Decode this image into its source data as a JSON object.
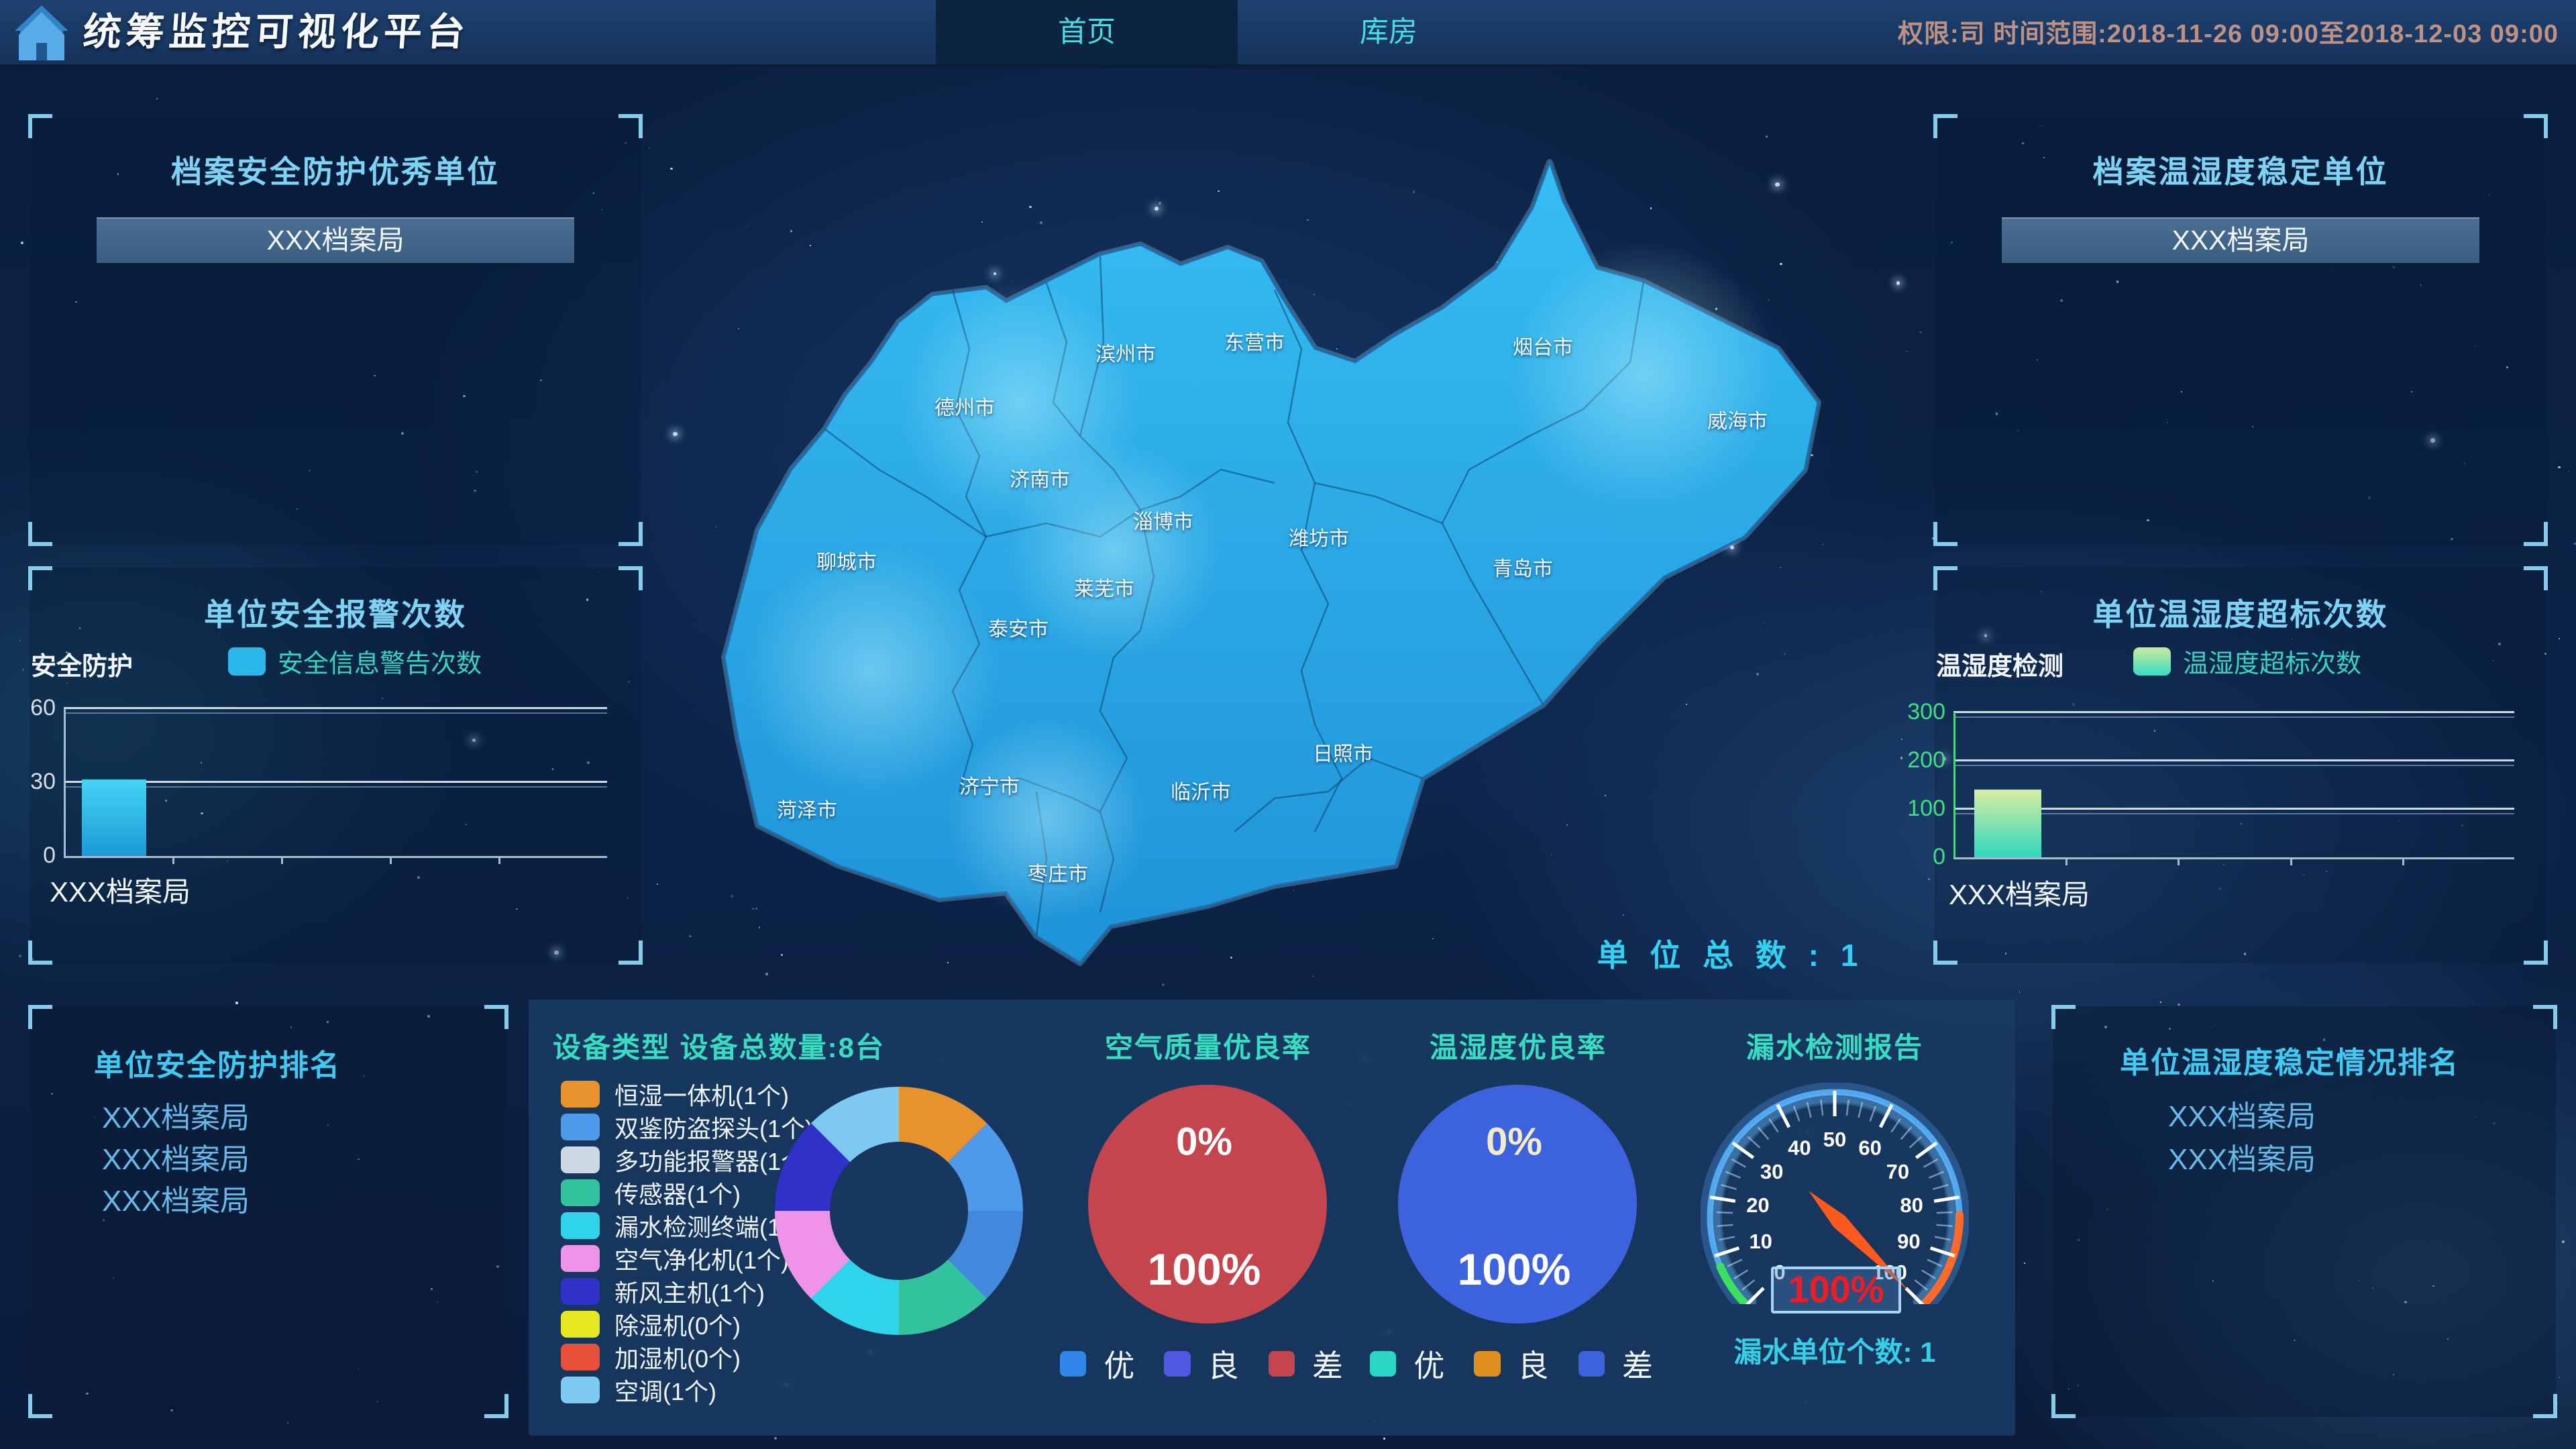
{
  "header": {
    "title": "统筹监控可视化平台",
    "tabs": [
      {
        "label": "首页",
        "active": true
      },
      {
        "label": "库房",
        "active": false
      }
    ],
    "info": "权限:司 时间范围:2018-11-26 09:00至2018-12-03 09:00"
  },
  "panels": {
    "top_left": {
      "title": "档案安全防护优秀单位",
      "items": [
        "XXX档案局"
      ]
    },
    "top_right": {
      "title": "档案温湿度稳定单位",
      "items": [
        "XXX档案局"
      ]
    },
    "rank_left": {
      "title": "单位安全防护排名",
      "items": [
        "XXX档案局",
        "XXX档案局",
        "XXX档案局"
      ]
    },
    "rank_right": {
      "title": "单位温湿度稳定情况排名",
      "items": [
        "XXX档案局",
        "XXX档案局"
      ]
    }
  },
  "map": {
    "total_units_label": "单 位 总 数 : 1",
    "cities": [
      "滨州市",
      "东营市",
      "烟台市",
      "威海市",
      "德州市",
      "济南市",
      "淄博市",
      "潍坊市",
      "聊城市",
      "莱芜市",
      "泰安市",
      "青岛市",
      "菏泽市",
      "济宁市",
      "临沂市",
      "日照市",
      "枣庄市"
    ]
  },
  "chart_data": {
    "alarm_bar": {
      "type": "bar",
      "panel_title": "单位安全报警次数",
      "side_label": "安全防护",
      "legend": "安全信息警告次数",
      "legend_color": "#2bb7ea",
      "categories": [
        "XXX档案局"
      ],
      "values": [
        31
      ],
      "ylim": [
        0,
        60
      ],
      "yticks": [
        60,
        30,
        0
      ],
      "tick_color": "#d6dde6",
      "bar_colors": [
        "#45d4f5",
        "#1b99d6"
      ]
    },
    "humidity_bar": {
      "type": "bar",
      "panel_title": "单位温湿度超标次数",
      "side_label": "温湿度检测",
      "legend": "温湿度超标次数",
      "legend_colors": [
        "#cde89a",
        "#35dec8"
      ],
      "categories": [
        "XXX档案局"
      ],
      "values": [
        140
      ],
      "ylim": [
        0,
        300
      ],
      "yticks": [
        300,
        200,
        100,
        0
      ],
      "tick_color": "#3ce281",
      "bar_colors": [
        "#d8eda0",
        "#2fd8c0"
      ]
    },
    "device_donut": {
      "type": "donut",
      "title": "设备类型 设备总数量:8台",
      "items": [
        {
          "label": "恒湿一体机(1个)",
          "count": 1,
          "color": "#e8922d"
        },
        {
          "label": "双鉴防盗探头(1个)",
          "count": 1,
          "color": "#4f99ea"
        },
        {
          "label": "多功能报警器(1个)",
          "count": 1,
          "color": "#ccd8e4",
          "chart_color": "#4289dd"
        },
        {
          "label": "传感器(1个)",
          "count": 1,
          "color": "#32c29e"
        },
        {
          "label": "漏水检测终端(1个)",
          "count": 1,
          "color": "#2fd4ea"
        },
        {
          "label": "空气净化机(1个)",
          "count": 1,
          "color": "#ef93e8"
        },
        {
          "label": "新风主机(1个)",
          "count": 1,
          "color": "#2f31c8"
        },
        {
          "label": "除湿机(0个)",
          "count": 0,
          "color": "#e6e621"
        },
        {
          "label": "加湿机(0个)",
          "count": 0,
          "color": "#e8503a"
        },
        {
          "label": "空调(1个)",
          "count": 1,
          "color": "#7ec9f1"
        }
      ]
    },
    "air_pie": {
      "type": "pie",
      "title": "空气质量优良率",
      "center_labels": {
        "top": "0%",
        "bottom": "100%"
      },
      "slices": [
        {
          "label": "优",
          "value": 0,
          "color": "#2f86e8"
        },
        {
          "label": "良",
          "value": 0,
          "color": "#5058e2"
        },
        {
          "label": "差",
          "value": 100,
          "color": "#c4454e"
        }
      ]
    },
    "temp_pie": {
      "type": "pie",
      "title": "温湿度优良率",
      "center_labels": {
        "top": "0%",
        "bottom": "100%"
      },
      "slices": [
        {
          "label": "优",
          "value": 0,
          "color": "#2cd6c6"
        },
        {
          "label": "良",
          "value": 0,
          "color": "#de8f1f"
        },
        {
          "label": "差",
          "value": 100,
          "color": "#3c63dd"
        }
      ]
    },
    "leak_gauge": {
      "type": "gauge",
      "title": "漏水检测报告",
      "value": 100,
      "value_label": "100%",
      "min": 0,
      "max": 100,
      "ticks": [
        0,
        10,
        20,
        30,
        40,
        50,
        60,
        70,
        80,
        90,
        100
      ],
      "footer": "漏水单位个数: 1",
      "needle_color": "#ff5a1e",
      "value_color": "#ef1c24"
    }
  }
}
